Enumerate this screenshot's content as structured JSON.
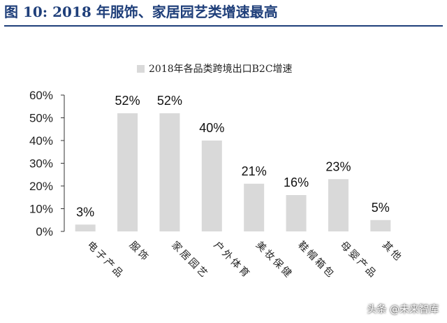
{
  "figure": {
    "title": "图 10:  2018 年服饰、家居园艺类增速最高",
    "watermark": "头条 @未来智库"
  },
  "colors": {
    "title": "#1f3f7a",
    "bar": "#d9d9d9",
    "axis": "#333333"
  },
  "chart_data": {
    "type": "bar",
    "categories": [
      "电子产品",
      "服饰",
      "家居园艺",
      "户外体育",
      "美妆保健",
      "鞋帽箱包",
      "母婴产品",
      "其他"
    ],
    "series": [
      {
        "name": "2018年各品类跨境出口B2C增速",
        "values": [
          3,
          52,
          52,
          40,
          21,
          16,
          23,
          5
        ]
      }
    ],
    "data_labels": [
      "3%",
      "52%",
      "52%",
      "40%",
      "21%",
      "16%",
      "23%",
      "5%"
    ],
    "yticks": [
      "0%",
      "10%",
      "20%",
      "30%",
      "40%",
      "50%",
      "60%"
    ],
    "ylim": [
      0,
      60
    ],
    "grid": false,
    "legend_position": "top-center"
  }
}
